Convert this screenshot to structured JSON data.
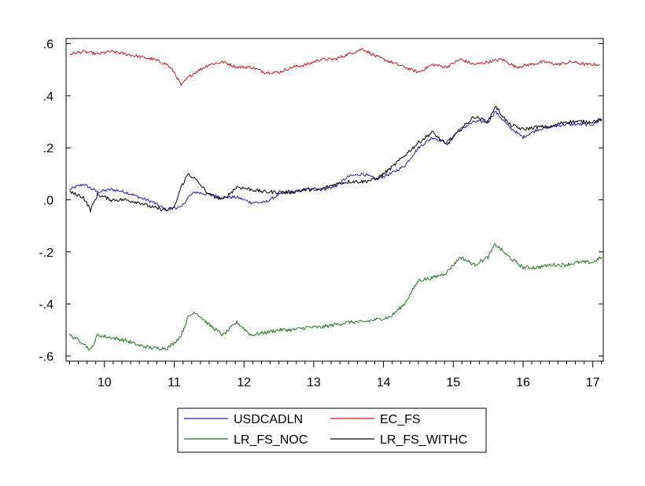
{
  "chart_data": {
    "type": "line",
    "title": "",
    "xlabel": "",
    "ylabel": "",
    "xlim": [
      9.45,
      17.15
    ],
    "ylim": [
      -0.62,
      0.62
    ],
    "x_ticks": [
      10,
      11,
      12,
      13,
      14,
      15,
      16,
      17
    ],
    "x_tick_labels": [
      "10",
      "11",
      "12",
      "13",
      "14",
      "15",
      "16",
      "17"
    ],
    "y_ticks": [
      0.6,
      0.4,
      0.2,
      0.0,
      -0.2,
      -0.4,
      -0.6
    ],
    "y_tick_labels": [
      ".6",
      ".4",
      ".2",
      ".0",
      "-.2",
      "-.4",
      "-.6"
    ],
    "grid": false,
    "legend_position": "bottom",
    "series": [
      {
        "name": "USDCADLN",
        "color": "#1f1fbf",
        "x": [
          9.5,
          9.7,
          9.9,
          10.1,
          10.3,
          10.5,
          10.7,
          10.9,
          11.0,
          11.1,
          11.2,
          11.3,
          11.5,
          11.7,
          11.9,
          12.1,
          12.3,
          12.5,
          12.7,
          12.9,
          13.1,
          13.3,
          13.5,
          13.7,
          13.9,
          14.1,
          14.3,
          14.5,
          14.7,
          14.9,
          15.1,
          15.3,
          15.5,
          15.6,
          15.8,
          16.0,
          16.2,
          16.4,
          16.6,
          16.8,
          17.0,
          17.13
        ],
        "y": [
          0.04,
          0.06,
          0.03,
          0.04,
          0.03,
          0.01,
          -0.01,
          -0.04,
          -0.03,
          -0.03,
          0.01,
          0.03,
          0.02,
          0.01,
          0.01,
          -0.01,
          -0.01,
          0.02,
          0.03,
          0.04,
          0.04,
          0.05,
          0.09,
          0.1,
          0.08,
          0.1,
          0.13,
          0.2,
          0.24,
          0.22,
          0.27,
          0.3,
          0.3,
          0.34,
          0.28,
          0.24,
          0.27,
          0.28,
          0.29,
          0.29,
          0.29,
          0.31
        ]
      },
      {
        "name": "EC_FS",
        "color": "#d01818",
        "x": [
          9.5,
          9.7,
          9.9,
          10.1,
          10.3,
          10.5,
          10.7,
          10.9,
          11.0,
          11.1,
          11.2,
          11.3,
          11.5,
          11.7,
          11.9,
          12.1,
          12.3,
          12.5,
          12.7,
          12.9,
          13.1,
          13.3,
          13.5,
          13.7,
          13.9,
          14.1,
          14.3,
          14.5,
          14.7,
          14.9,
          15.1,
          15.3,
          15.5,
          15.7,
          15.9,
          16.1,
          16.3,
          16.5,
          16.7,
          16.9,
          17.1
        ],
        "y": [
          0.56,
          0.57,
          0.56,
          0.57,
          0.56,
          0.55,
          0.54,
          0.52,
          0.49,
          0.44,
          0.47,
          0.49,
          0.52,
          0.53,
          0.51,
          0.51,
          0.49,
          0.49,
          0.51,
          0.52,
          0.54,
          0.54,
          0.56,
          0.58,
          0.55,
          0.53,
          0.51,
          0.49,
          0.52,
          0.51,
          0.54,
          0.52,
          0.53,
          0.54,
          0.51,
          0.52,
          0.53,
          0.52,
          0.53,
          0.52,
          0.52
        ]
      },
      {
        "name": "LR_FS_NOC",
        "color": "#1a7a1a",
        "x": [
          9.5,
          9.7,
          9.8,
          9.9,
          10.1,
          10.3,
          10.5,
          10.7,
          10.9,
          11.0,
          11.1,
          11.2,
          11.3,
          11.5,
          11.7,
          11.9,
          12.1,
          12.3,
          12.5,
          12.7,
          12.9,
          13.1,
          13.3,
          13.5,
          13.7,
          13.9,
          14.1,
          14.3,
          14.5,
          14.7,
          14.9,
          15.1,
          15.3,
          15.5,
          15.6,
          15.8,
          16.0,
          16.2,
          16.4,
          16.6,
          16.8,
          17.0,
          17.13
        ],
        "y": [
          -0.52,
          -0.55,
          -0.58,
          -0.52,
          -0.53,
          -0.54,
          -0.56,
          -0.57,
          -0.57,
          -0.55,
          -0.52,
          -0.45,
          -0.43,
          -0.48,
          -0.52,
          -0.47,
          -0.52,
          -0.51,
          -0.5,
          -0.5,
          -0.49,
          -0.49,
          -0.48,
          -0.47,
          -0.47,
          -0.46,
          -0.45,
          -0.4,
          -0.31,
          -0.3,
          -0.28,
          -0.22,
          -0.25,
          -0.22,
          -0.17,
          -0.22,
          -0.26,
          -0.26,
          -0.25,
          -0.25,
          -0.24,
          -0.24,
          -0.22
        ]
      },
      {
        "name": "LR_FS_WITHC",
        "color": "#000000",
        "x": [
          9.5,
          9.7,
          9.8,
          9.9,
          10.1,
          10.3,
          10.5,
          10.7,
          10.9,
          11.0,
          11.1,
          11.2,
          11.3,
          11.5,
          11.7,
          11.9,
          12.1,
          12.3,
          12.5,
          12.7,
          12.9,
          13.1,
          13.3,
          13.5,
          13.7,
          13.9,
          14.1,
          14.3,
          14.5,
          14.7,
          14.9,
          15.1,
          15.3,
          15.5,
          15.6,
          15.8,
          16.0,
          16.2,
          16.4,
          16.6,
          16.8,
          17.0,
          17.13
        ],
        "y": [
          0.03,
          0.01,
          -0.04,
          0.02,
          0.0,
          0.0,
          -0.01,
          -0.03,
          -0.04,
          -0.03,
          0.05,
          0.1,
          0.08,
          0.02,
          0.0,
          0.05,
          0.04,
          0.03,
          0.03,
          0.03,
          0.04,
          0.04,
          0.06,
          0.07,
          0.07,
          0.08,
          0.12,
          0.17,
          0.22,
          0.26,
          0.21,
          0.27,
          0.32,
          0.3,
          0.36,
          0.29,
          0.27,
          0.28,
          0.28,
          0.3,
          0.3,
          0.3,
          0.31
        ]
      }
    ]
  }
}
